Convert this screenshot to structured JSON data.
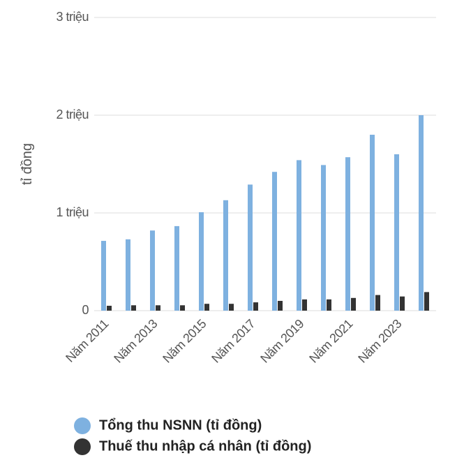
{
  "chart_data": {
    "type": "bar",
    "y_label": "tỉ đồng",
    "categories": [
      "Năm 2011",
      null,
      "Năm 2013",
      null,
      "Năm 2015",
      null,
      "Năm 2017",
      null,
      "Năm 2019",
      null,
      "Năm 2021",
      null,
      "Năm 2023",
      null
    ],
    "series": [
      {
        "name": "Tổng thu NSNN (tỉ đồng)",
        "color": "#7eb1e0",
        "values": [
          714000,
          730000,
          820000,
          865000,
          1007000,
          1130000,
          1290000,
          1420000,
          1540000,
          1490000,
          1570000,
          1800000,
          1600000,
          2000000
        ]
      },
      {
        "name": "Thuế thu nhập cá nhân (tỉ đồng)",
        "color": "#333333",
        "values": [
          50000,
          55000,
          55000,
          55000,
          70000,
          70000,
          85000,
          100000,
          115000,
          115000,
          130000,
          160000,
          145000,
          190000
        ]
      }
    ],
    "ylim": [
      0,
      3000000
    ],
    "yticks": [
      {
        "value": 0,
        "label": "0"
      },
      {
        "value": 1000000,
        "label": "1 triệu"
      },
      {
        "value": 2000000,
        "label": "2 triệu"
      },
      {
        "value": 3000000,
        "label": "3 triệu"
      }
    ],
    "grid": true,
    "legend": "bottom"
  }
}
